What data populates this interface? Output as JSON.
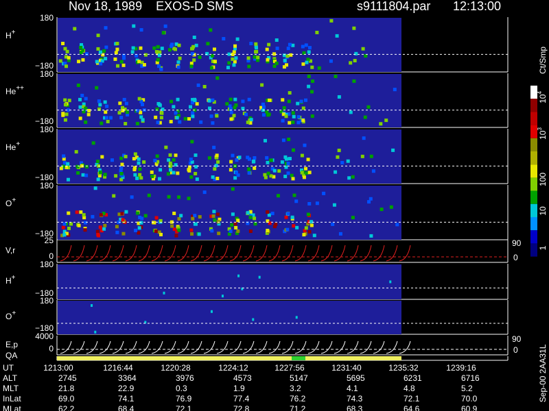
{
  "header": {
    "title": "Nov 18, 1989    EXOS-D SMS",
    "file": "s9111804.par",
    "time": "12:13:00"
  },
  "panels": [
    {
      "label": "H",
      "sup": "+",
      "top": "180",
      "bottom": "−180"
    },
    {
      "label": "He",
      "sup": "++",
      "top": "180",
      "bottom": "−180"
    },
    {
      "label": "He",
      "sup": "+",
      "top": "180",
      "bottom": "−180"
    },
    {
      "label": "O",
      "sup": "+",
      "top": "180",
      "bottom": "−180"
    },
    {
      "label": "V,r",
      "sup": "",
      "top": "25",
      "bottom": "0",
      "right_top": "90",
      "right_bottom": "0"
    },
    {
      "label": "H",
      "sup": "+",
      "top": "180",
      "bottom": "−180"
    },
    {
      "label": "O",
      "sup": "+",
      "top": "180",
      "bottom": "−180"
    },
    {
      "label": "E,p",
      "sup": "",
      "top": "4000",
      "bottom": "0",
      "right_top": "90",
      "right_bottom": "0"
    },
    {
      "label": "QA",
      "sup": ""
    }
  ],
  "colorbar": {
    "unit": "Ct/Smp",
    "ticks": [
      {
        "base": "10",
        "exp": "4"
      },
      {
        "base": "10",
        "exp": "3"
      },
      {
        "base": "100",
        "exp": ""
      },
      {
        "base": "10",
        "exp": ""
      },
      {
        "base": "1",
        "exp": ""
      }
    ]
  },
  "footer": {
    "row_labels": [
      "UT",
      "ALT",
      "MLT",
      "InLat",
      "MLat"
    ],
    "rows": [
      [
        "1213:00",
        "1216:44",
        "1220:28",
        "1224:12",
        "1227:56",
        "1231:40",
        "1235:32",
        "1239:16"
      ],
      [
        "2745",
        "3364",
        "3976",
        "4573",
        "5147",
        "5695",
        "6231",
        "6716"
      ],
      [
        "21.8",
        "22.9",
        "0.3",
        "1.9",
        "3.2",
        "4.1",
        "4.8",
        "5.2"
      ],
      [
        "69.0",
        "74.1",
        "76.9",
        "77.4",
        "76.2",
        "74.3",
        "72.1",
        "70.0"
      ],
      [
        "62.2",
        "68.4",
        "72.1",
        "72.8",
        "71.2",
        "68.3",
        "64.6",
        "60.9"
      ]
    ],
    "code": "Sep-00  2AA31L"
  }
}
